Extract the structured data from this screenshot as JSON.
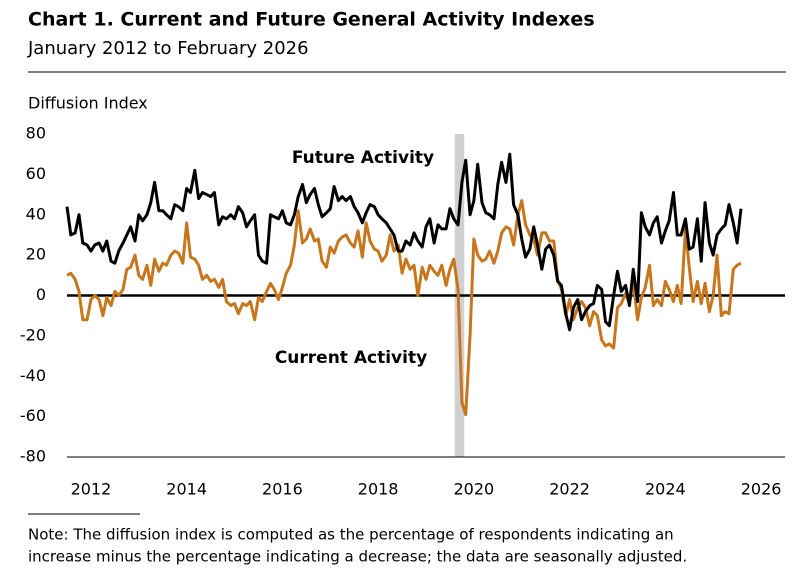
{
  "chart_data": {
    "type": "line",
    "title": "Chart 1. Current and Future General Activity Indexes",
    "subtitle": "January 2012 to February 2026",
    "y_label": "Diffusion Index",
    "note": [
      "Note: The diffusion index is computed as the percentage of respondents indicating an",
      "increase minus the percentage indicating a decrease; the data are seasonally adjusted."
    ],
    "xlim": [
      2012,
      2027
    ],
    "xticks": [
      {
        "value": 2012.5,
        "label": "2012"
      },
      {
        "value": 2014.5,
        "label": "2014"
      },
      {
        "value": 2016.5,
        "label": "2016"
      },
      {
        "value": 2018.5,
        "label": "2018"
      },
      {
        "value": 2020.5,
        "label": "2020"
      },
      {
        "value": 2022.5,
        "label": "2022"
      },
      {
        "value": 2024.5,
        "label": "2024"
      },
      {
        "value": 2026.5,
        "label": "2026"
      }
    ],
    "ylim": [
      -80,
      80
    ],
    "yticks": [
      -80,
      -60,
      -40,
      -20,
      0,
      20,
      40,
      60,
      80
    ],
    "shade": [
      2020.1,
      2020.3
    ],
    "x": [
      2012,
      2012.08,
      2012.17,
      2012.25,
      2012.33,
      2012.42,
      2012.5,
      2012.58,
      2012.67,
      2012.75,
      2012.83,
      2012.92,
      2013,
      2013.08,
      2013.17,
      2013.25,
      2013.33,
      2013.42,
      2013.5,
      2013.58,
      2013.67,
      2013.75,
      2013.83,
      2013.92,
      2014,
      2014.08,
      2014.17,
      2014.25,
      2014.33,
      2014.42,
      2014.5,
      2014.58,
      2014.67,
      2014.75,
      2014.83,
      2014.92,
      2015,
      2015.08,
      2015.17,
      2015.25,
      2015.33,
      2015.42,
      2015.5,
      2015.58,
      2015.67,
      2015.75,
      2015.83,
      2015.92,
      2016,
      2016.08,
      2016.17,
      2016.25,
      2016.33,
      2016.42,
      2016.5,
      2016.58,
      2016.67,
      2016.75,
      2016.83,
      2016.92,
      2017,
      2017.08,
      2017.17,
      2017.25,
      2017.33,
      2017.42,
      2017.5,
      2017.58,
      2017.67,
      2017.75,
      2017.83,
      2017.92,
      2018,
      2018.08,
      2018.17,
      2018.25,
      2018.33,
      2018.42,
      2018.5,
      2018.58,
      2018.67,
      2018.75,
      2018.83,
      2018.92,
      2019,
      2019.08,
      2019.17,
      2019.25,
      2019.33,
      2019.42,
      2019.5,
      2019.58,
      2019.67,
      2019.75,
      2019.83,
      2019.92,
      2020,
      2020.08,
      2020.17,
      2020.25,
      2020.33,
      2020.42,
      2020.5,
      2020.58,
      2020.67,
      2020.75,
      2020.83,
      2020.92,
      2021,
      2021.08,
      2021.17,
      2021.25,
      2021.33,
      2021.42,
      2021.5,
      2021.58,
      2021.67,
      2021.75,
      2021.83,
      2021.92,
      2022,
      2022.08,
      2022.17,
      2022.25,
      2022.33,
      2022.42,
      2022.5,
      2022.58,
      2022.67,
      2022.75,
      2022.83,
      2022.92,
      2023,
      2023.08,
      2023.17,
      2023.25,
      2023.33,
      2023.42,
      2023.5,
      2023.58,
      2023.67,
      2023.75,
      2023.83,
      2023.92,
      2024,
      2024.08,
      2024.17,
      2024.25,
      2024.33,
      2024.42,
      2024.5,
      2024.58,
      2024.67,
      2024.75,
      2024.83,
      2024.92,
      2025,
      2025.08,
      2025.17,
      2025.25,
      2025.33,
      2025.42,
      2025.5,
      2025.58,
      2025.67,
      2025.75,
      2025.83,
      2025.92,
      2026,
      2026.08
    ],
    "series": [
      {
        "name": "Future Activity",
        "color": "#000000",
        "values": [
          44,
          30,
          31,
          40,
          26,
          25,
          22,
          25,
          26,
          22,
          27,
          17,
          16,
          22,
          26,
          30,
          34,
          27,
          40,
          37,
          40,
          46,
          56,
          42,
          42,
          40,
          38,
          45,
          44,
          42,
          53,
          51,
          62,
          48,
          51,
          50,
          49,
          51,
          35,
          39,
          38,
          40,
          38,
          44,
          41,
          34,
          37,
          40,
          20,
          17,
          16,
          40,
          39,
          38,
          42,
          36,
          35,
          40,
          49,
          55,
          46,
          50,
          53,
          45,
          39,
          41,
          43,
          54,
          47,
          49,
          47,
          49,
          44,
          41,
          36,
          41,
          45,
          44,
          40,
          38,
          36,
          33,
          30,
          22,
          22,
          27,
          25,
          31,
          27,
          24,
          34,
          38,
          26,
          35,
          33,
          33,
          43,
          38,
          35,
          56,
          67,
          40,
          47,
          65,
          46,
          41,
          40,
          38,
          55,
          66,
          56,
          70,
          45,
          40,
          28,
          19,
          23,
          34,
          25,
          13,
          23,
          25,
          20,
          7,
          5,
          -9,
          -17,
          -6,
          -2,
          -12,
          -8,
          -5,
          -4,
          5,
          3,
          -13,
          -15,
          0,
          12,
          2,
          5,
          -5,
          13,
          -3,
          41,
          34,
          30,
          36,
          39,
          26,
          32,
          37,
          51,
          30,
          30,
          38,
          23,
          24,
          38,
          17,
          46,
          26,
          20,
          30,
          33,
          35,
          45,
          36,
          26,
          43
        ]
      },
      {
        "name": "Current Activity",
        "color": "#c8761c",
        "values": [
          10,
          11,
          8,
          2,
          -12,
          -12,
          -2,
          0,
          -2,
          -10,
          -1,
          -5,
          2,
          0,
          3,
          13,
          14,
          20,
          10,
          8,
          15,
          5,
          18,
          12,
          16,
          15,
          20,
          22,
          21,
          16,
          36,
          19,
          18,
          15,
          8,
          10,
          7,
          8,
          4,
          8,
          -3,
          -5,
          -4,
          -9,
          -4,
          -5,
          -3,
          -12,
          -1,
          -3,
          2,
          6,
          3,
          -2,
          4,
          11,
          15,
          25,
          42,
          26,
          28,
          33,
          27,
          28,
          17,
          14,
          24,
          21,
          27,
          29,
          30,
          26,
          24,
          32,
          19,
          36,
          27,
          23,
          22,
          17,
          20,
          30,
          22,
          25,
          11,
          18,
          13,
          15,
          0,
          14,
          8,
          15,
          12,
          10,
          15,
          5,
          13,
          18,
          3,
          -53,
          -59,
          -20,
          28,
          20,
          17,
          18,
          22,
          16,
          22,
          31,
          34,
          33,
          25,
          40,
          47,
          35,
          30,
          28,
          20,
          31,
          31,
          27,
          27,
          8,
          3,
          -10,
          -2,
          -12,
          -6,
          -3,
          -6,
          -15,
          -8,
          -10,
          -22,
          -25,
          -24,
          -26,
          -6,
          -4,
          1,
          -4,
          7,
          -12,
          -1,
          4,
          15,
          -5,
          -2,
          -5,
          7,
          3,
          -3,
          5,
          -4,
          33,
          14,
          -3,
          7,
          -4,
          6,
          -8,
          0,
          20,
          -10,
          -8,
          -9,
          13,
          15,
          16
        ]
      }
    ]
  }
}
